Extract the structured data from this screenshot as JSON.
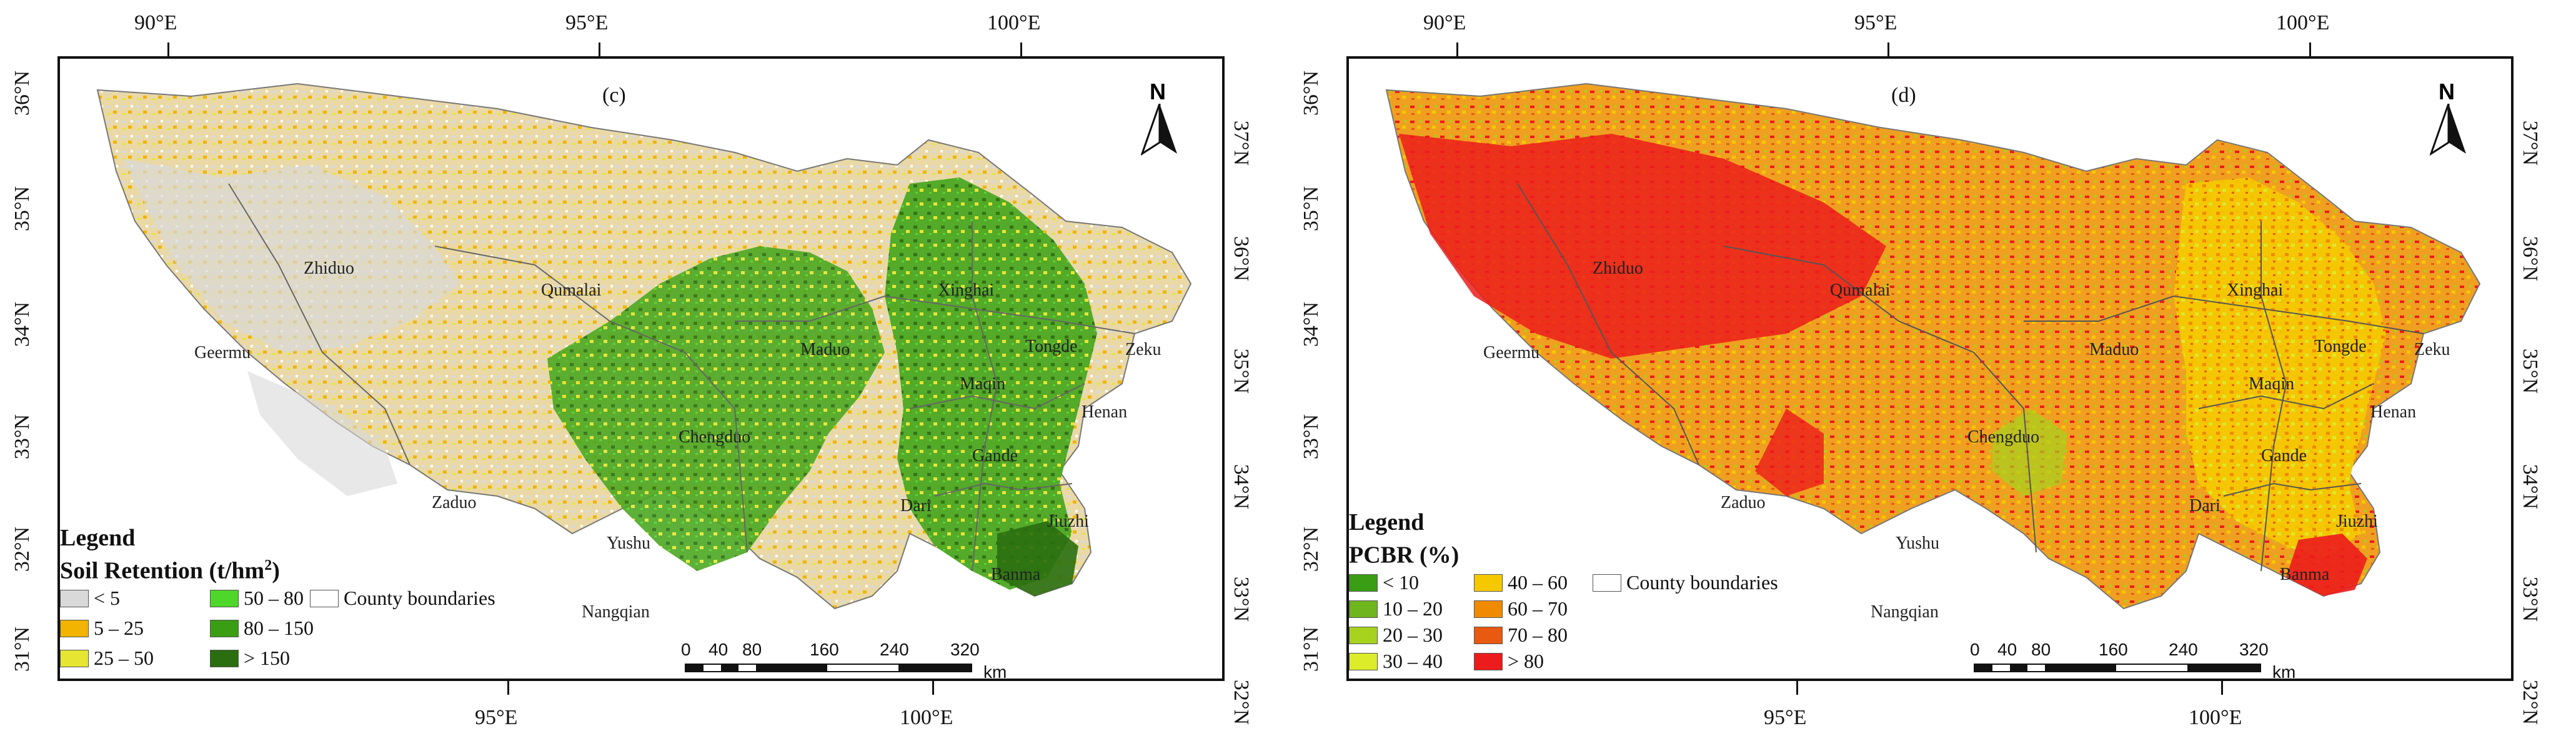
{
  "panels": [
    {
      "label": "(c)",
      "top_ticks": [
        "90°E",
        "95°E",
        "100°E"
      ],
      "bottom_ticks": [
        "95°E",
        "100°E"
      ],
      "left_ticks": [
        "36°N",
        "35°N",
        "34°N",
        "33°N",
        "32°N",
        "31°N"
      ],
      "right_ticks": [
        "37°N",
        "36°N",
        "35°N",
        "34°N",
        "33°N",
        "32°N"
      ],
      "north_arrow": "N",
      "legend": {
        "title": "Legend",
        "subtitle": "Soil Retention (t/hm",
        "subtitle_sup": "2",
        "subtitle_close": ")",
        "items": [
          {
            "label": "< 5",
            "color": "#d9d9d9"
          },
          {
            "label": "5 – 25",
            "color": "#f2b400"
          },
          {
            "label": "25 – 50",
            "color": "#e6e632"
          },
          {
            "label": "50 – 80",
            "color": "#4ed62a"
          },
          {
            "label": "80 – 150",
            "color": "#3a9e14"
          },
          {
            "label": "> 150",
            "color": "#2a6e10"
          },
          {
            "label": "County boundaries",
            "color": "#ffffff"
          }
        ]
      },
      "counties": [
        "Zhiduo",
        "Qumalai",
        "Geermu",
        "Maduo",
        "Xinghai",
        "Tongde",
        "Zeku",
        "Maqin",
        "Henan",
        "Chengduo",
        "Gande",
        "Zaduo",
        "Dari",
        "Yushu",
        "Jiuzhi",
        "Banma",
        "Nangqian"
      ],
      "scale": {
        "labels": [
          "0",
          "40",
          "80",
          "160",
          "240",
          "320"
        ],
        "unit": "km"
      }
    },
    {
      "label": "(d)",
      "top_ticks": [
        "90°E",
        "95°E",
        "100°E"
      ],
      "bottom_ticks": [
        "95°E",
        "100°E"
      ],
      "left_ticks": [
        "36°N",
        "35°N",
        "34°N",
        "33°N",
        "32°N",
        "31°N"
      ],
      "right_ticks": [
        "37°N",
        "36°N",
        "35°N",
        "34°N",
        "33°N",
        "32°N"
      ],
      "north_arrow": "N",
      "legend": {
        "title": "Legend",
        "subtitle": "PCBR (%)",
        "subtitle_sup": "",
        "subtitle_close": "",
        "items": [
          {
            "label": "< 10",
            "color": "#3a9e14"
          },
          {
            "label": "10 – 20",
            "color": "#6fb51e"
          },
          {
            "label": "20 – 30",
            "color": "#a7d21e"
          },
          {
            "label": "30 – 40",
            "color": "#dcec2a"
          },
          {
            "label": "40 – 60",
            "color": "#f5c800"
          },
          {
            "label": "60 – 70",
            "color": "#f08a00"
          },
          {
            "label": "70 – 80",
            "color": "#e85a10"
          },
          {
            "label": "> 80",
            "color": "#ec1c1c"
          },
          {
            "label": "County boundaries",
            "color": "#ffffff"
          }
        ]
      },
      "counties": [
        "Zhiduo",
        "Qumalai",
        "Geermu",
        "Maduo",
        "Xinghai",
        "Tongde",
        "Zeku",
        "Maqin",
        "Henan",
        "Chengduo",
        "Gande",
        "Zaduo",
        "Dari",
        "Yushu",
        "Jiuzhi",
        "Banma",
        "Nangqian"
      ],
      "scale": {
        "labels": [
          "0",
          "40",
          "80",
          "160",
          "240",
          "320"
        ],
        "unit": "km"
      }
    }
  ]
}
